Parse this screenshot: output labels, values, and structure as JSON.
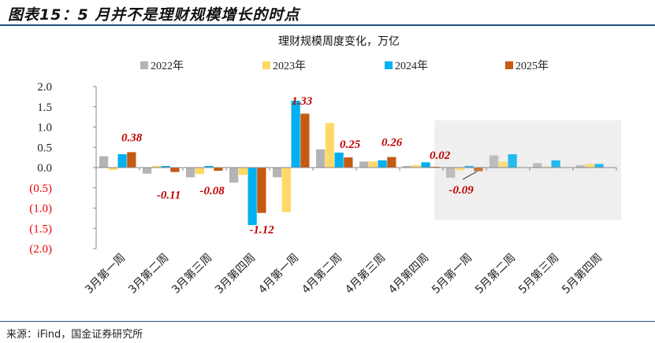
{
  "header": {
    "title": "图表15：5 月并不是理财规模增长的时点"
  },
  "footer": {
    "source": "来源：iFind，国金证券研究所"
  },
  "chart_data": {
    "type": "bar",
    "title": "理财规模周度变化，万亿",
    "categories": [
      "3月第一周",
      "3月第二周",
      "3月第三周",
      "3月第四周",
      "4月第一周",
      "4月第二周",
      "4月第三周",
      "4月第四周",
      "5月第一周",
      "5月第二周",
      "5月第三周",
      "5月第四周"
    ],
    "series": [
      {
        "name": "2022年",
        "color": "#b4b4b4",
        "values": [
          0.28,
          -0.15,
          -0.24,
          -0.37,
          -0.24,
          0.45,
          0.15,
          0.04,
          -0.25,
          0.3,
          0.11,
          0.06
        ]
      },
      {
        "name": "2023年",
        "color": "#ffd966",
        "values": [
          -0.06,
          0.04,
          -0.16,
          -0.18,
          -1.1,
          1.1,
          0.15,
          0.06,
          -0.07,
          0.15,
          0.03,
          0.09
        ]
      },
      {
        "name": "2024年",
        "color": "#00b0f0",
        "values": [
          0.33,
          0.04,
          0.04,
          -1.42,
          1.65,
          0.37,
          0.18,
          0.13,
          0.04,
          0.33,
          0.18,
          0.09
        ]
      },
      {
        "name": "2025年",
        "color": "#c55a11",
        "values": [
          0.38,
          -0.11,
          -0.08,
          -1.12,
          1.33,
          0.25,
          0.26,
          0.02,
          -0.09,
          null,
          null,
          null
        ]
      }
    ],
    "data_labels": [
      "0.38",
      "-0.11",
      "-0.08",
      "-1.12",
      "1.33",
      "0.25",
      "0.26",
      "0.02",
      "-0.09"
    ],
    "yticks": [
      "2.0",
      "1.5",
      "1.0",
      "0.5",
      "0.0",
      "(0.5)",
      "(1.0)",
      "(1.5)",
      "(2.0)"
    ],
    "ylim": [
      -2,
      2
    ],
    "legend": "top",
    "grid": false,
    "highlight_region": "5月第一周–5月第四周"
  }
}
